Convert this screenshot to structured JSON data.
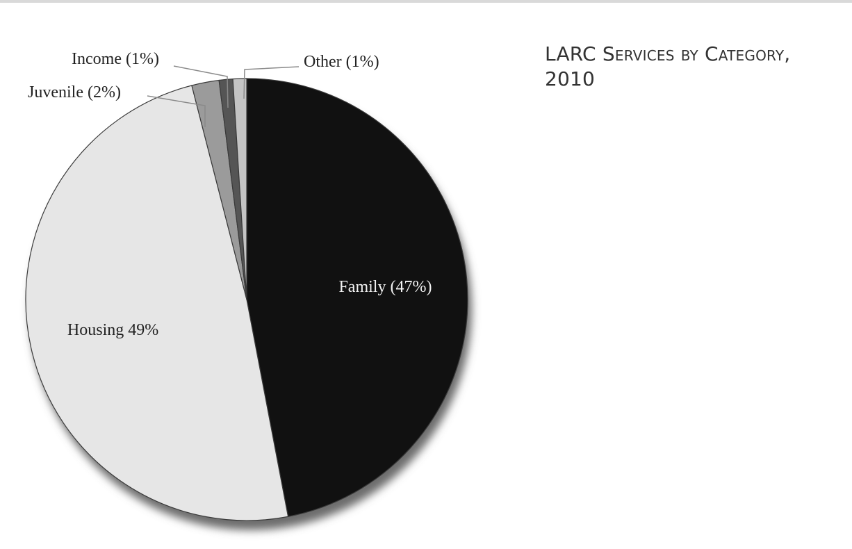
{
  "chart_data": {
    "type": "pie",
    "title": "LARC Services by Category, 2010",
    "slices": [
      {
        "name": "Family",
        "label": "Family (47%)",
        "value": 47,
        "color": "#111111",
        "text_color": "#f2f2f2"
      },
      {
        "name": "Housing",
        "label": "Housing 49%",
        "value": 49,
        "color": "#e6e6e6",
        "text_color": "#222222"
      },
      {
        "name": "Juvenile",
        "label": "Juvenile (2%)",
        "value": 2,
        "color": "#9b9b9b",
        "text_color": "#222222"
      },
      {
        "name": "Income",
        "label": "Income (1%)",
        "value": 1,
        "color": "#555555",
        "text_color": "#222222"
      },
      {
        "name": "Other",
        "label": "Other (1%)",
        "value": 1,
        "color": "#c4c4c4",
        "text_color": "#222222"
      }
    ],
    "start": "12 o'clock",
    "direction": "clockwise",
    "legend": "none"
  }
}
